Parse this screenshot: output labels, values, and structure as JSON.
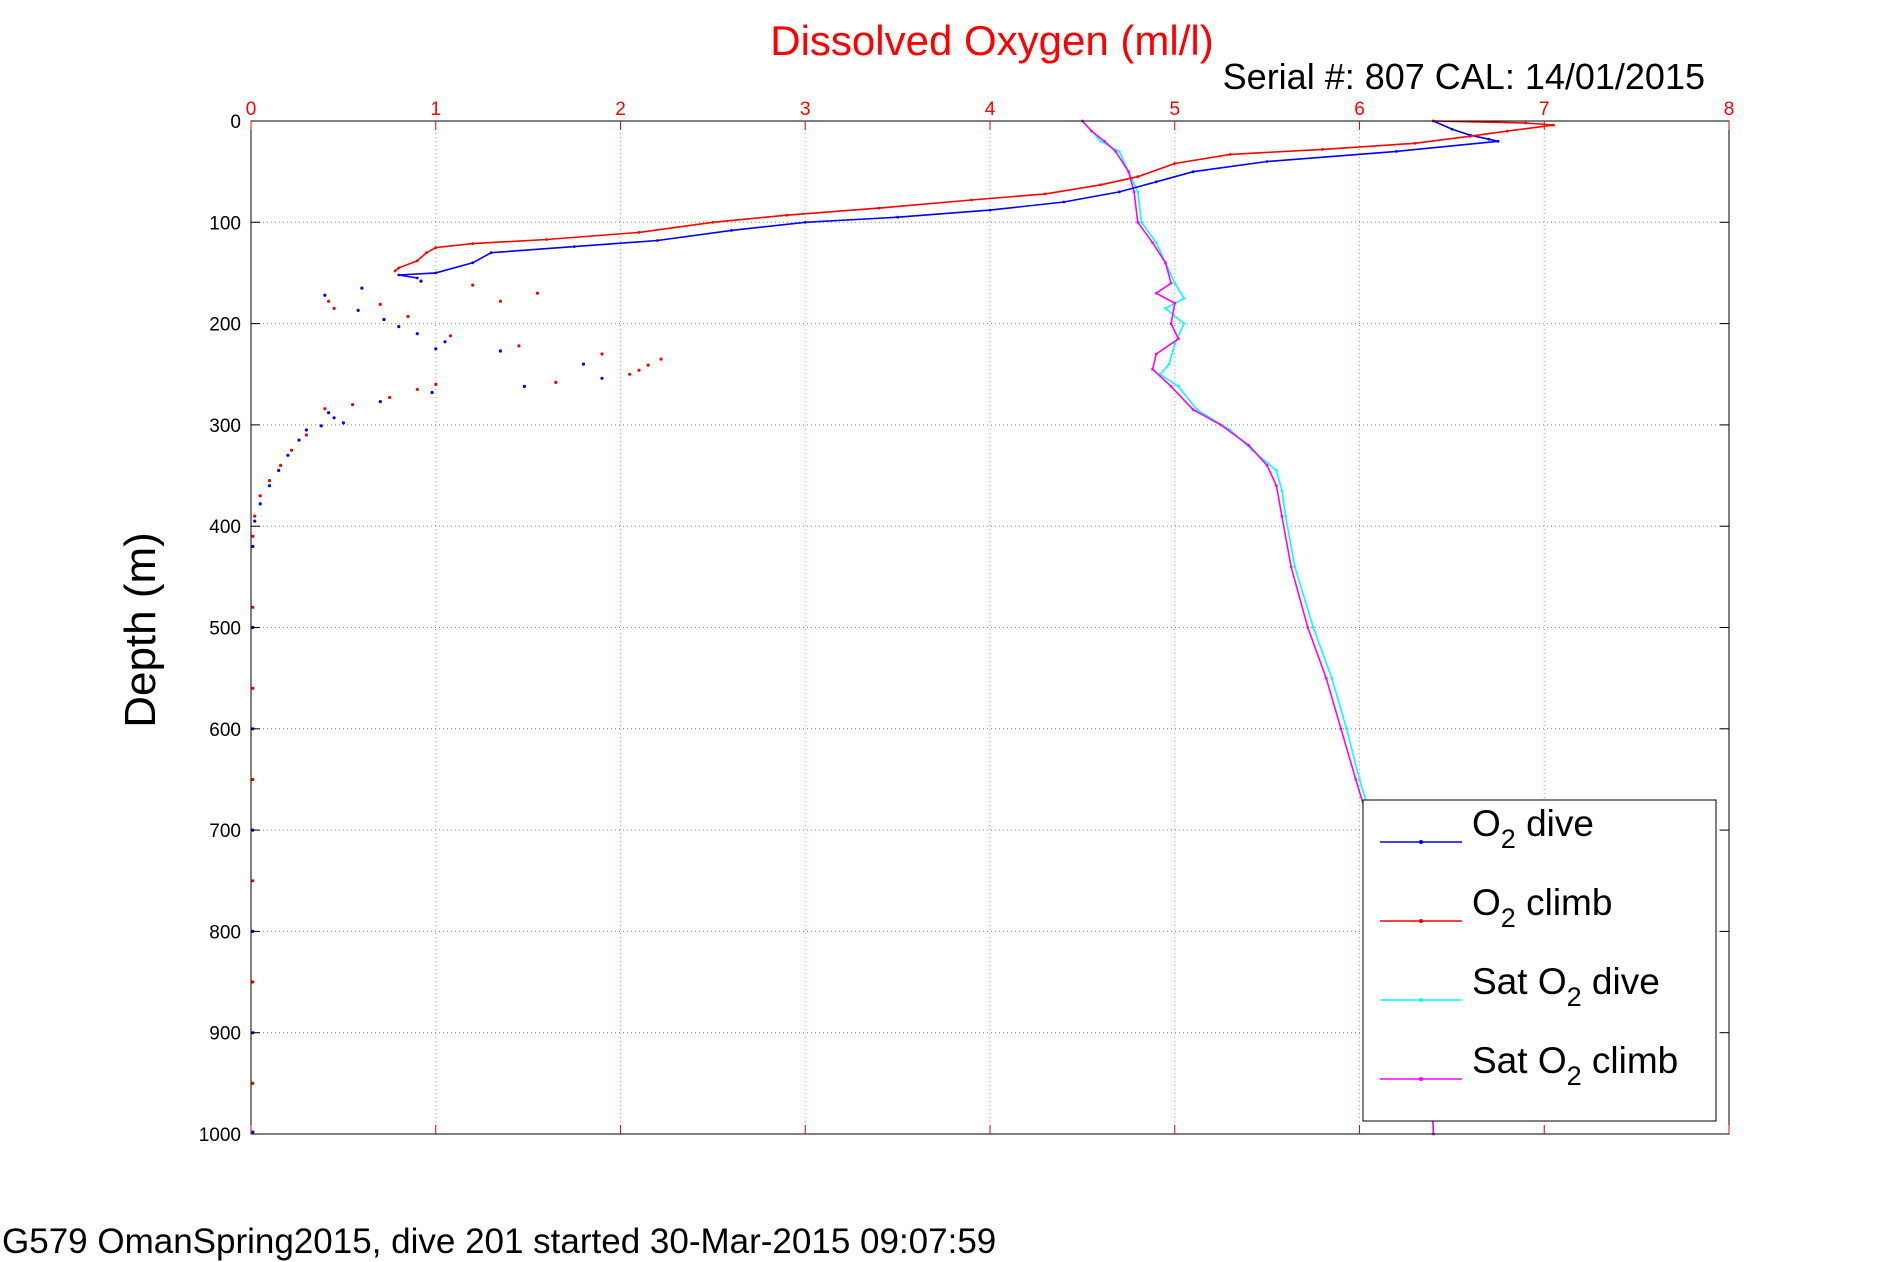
{
  "chart_data": {
    "type": "line",
    "title": "Dissolved Oxygen (ml/l)",
    "subtitle": "Serial #: 807  CAL: 14/01/2015",
    "ylabel": "Depth (m)",
    "footer": "G579 OmanSpring2015, dive 201 started 30-Mar-2015 09:07:59",
    "x_axis": {
      "position": "top",
      "range": [
        0,
        8
      ],
      "ticks": [
        "0",
        "1",
        "2",
        "3",
        "4",
        "5",
        "6",
        "7",
        "8"
      ],
      "color": "#ff0000"
    },
    "y_axis": {
      "range": [
        0,
        1000
      ],
      "reversed": true,
      "ticks": [
        "0",
        "100",
        "200",
        "300",
        "400",
        "500",
        "600",
        "700",
        "800",
        "900",
        "1000"
      ]
    },
    "grid": true,
    "legend_position": "bottom-right",
    "series": [
      {
        "name": "O2 dive",
        "legend_main": "O",
        "legend_sub": "2",
        "legend_rest": " dive",
        "color": "#0000ff",
        "points": [
          [
            6.4,
            0
          ],
          [
            6.5,
            8
          ],
          [
            6.6,
            14
          ],
          [
            6.7,
            18
          ],
          [
            6.75,
            20
          ],
          [
            6.2,
            30
          ],
          [
            5.5,
            40
          ],
          [
            5.1,
            50
          ],
          [
            4.9,
            60
          ],
          [
            4.7,
            70
          ],
          [
            4.4,
            80
          ],
          [
            4.0,
            88
          ],
          [
            3.5,
            95
          ],
          [
            3.0,
            100
          ],
          [
            2.6,
            108
          ],
          [
            2.2,
            118
          ],
          [
            1.75,
            124
          ],
          [
            1.3,
            130
          ],
          [
            1.2,
            140
          ],
          [
            1.0,
            150
          ],
          [
            0.8,
            152
          ],
          [
            0.9,
            155
          ]
        ]
      },
      {
        "name": "O2 climb",
        "legend_main": "O",
        "legend_sub": "2",
        "legend_rest": " climb",
        "color": "#ff0000",
        "points": [
          [
            6.4,
            0
          ],
          [
            6.9,
            2
          ],
          [
            7.05,
            4
          ],
          [
            6.8,
            10
          ],
          [
            6.6,
            15
          ],
          [
            6.3,
            22
          ],
          [
            5.8,
            28
          ],
          [
            5.3,
            33
          ],
          [
            5.0,
            42
          ],
          [
            4.8,
            55
          ],
          [
            4.6,
            63
          ],
          [
            4.3,
            72
          ],
          [
            3.9,
            78
          ],
          [
            3.4,
            86
          ],
          [
            2.9,
            93
          ],
          [
            2.5,
            100
          ],
          [
            2.1,
            110
          ],
          [
            1.6,
            117
          ],
          [
            1.2,
            121
          ],
          [
            1.0,
            125
          ],
          [
            0.95,
            130
          ],
          [
            0.9,
            138
          ],
          [
            0.8,
            145
          ],
          [
            0.78,
            148
          ]
        ]
      },
      {
        "name": "Sat O2 dive",
        "legend_main": "Sat O",
        "legend_sub": "2",
        "legend_rest": " dive",
        "color": "#00ffff",
        "points": [
          [
            4.5,
            0
          ],
          [
            4.55,
            10
          ],
          [
            4.6,
            20
          ],
          [
            4.7,
            30
          ],
          [
            4.75,
            50
          ],
          [
            4.8,
            70
          ],
          [
            4.82,
            100
          ],
          [
            4.9,
            120
          ],
          [
            4.95,
            140
          ],
          [
            5.0,
            160
          ],
          [
            5.05,
            175
          ],
          [
            4.95,
            185
          ],
          [
            5.05,
            200
          ],
          [
            5.0,
            220
          ],
          [
            4.97,
            240
          ],
          [
            4.92,
            250
          ],
          [
            5.02,
            262
          ],
          [
            5.12,
            285
          ],
          [
            5.3,
            305
          ],
          [
            5.42,
            325
          ],
          [
            5.55,
            345
          ],
          [
            5.58,
            365
          ],
          [
            5.6,
            390
          ],
          [
            5.65,
            440
          ],
          [
            5.75,
            500
          ],
          [
            5.85,
            550
          ],
          [
            5.93,
            600
          ],
          [
            6.0,
            650
          ],
          [
            6.05,
            680
          ],
          [
            6.1,
            700
          ],
          [
            6.2,
            750
          ],
          [
            6.3,
            820
          ],
          [
            6.38,
            900
          ],
          [
            6.4,
            1000
          ]
        ]
      },
      {
        "name": "Sat O2 climb",
        "legend_main": "Sat O",
        "legend_sub": "2",
        "legend_rest": " climb",
        "color": "#ff00ff",
        "points": [
          [
            4.5,
            0
          ],
          [
            4.55,
            10
          ],
          [
            4.62,
            20
          ],
          [
            4.68,
            30
          ],
          [
            4.75,
            50
          ],
          [
            4.78,
            70
          ],
          [
            4.8,
            100
          ],
          [
            4.88,
            120
          ],
          [
            4.95,
            140
          ],
          [
            4.98,
            160
          ],
          [
            4.9,
            170
          ],
          [
            5.0,
            180
          ],
          [
            4.98,
            200
          ],
          [
            5.02,
            215
          ],
          [
            4.9,
            230
          ],
          [
            4.88,
            245
          ],
          [
            4.98,
            262
          ],
          [
            5.1,
            285
          ],
          [
            5.25,
            300
          ],
          [
            5.4,
            320
          ],
          [
            5.5,
            340
          ],
          [
            5.55,
            360
          ],
          [
            5.58,
            390
          ],
          [
            5.63,
            440
          ],
          [
            5.72,
            500
          ],
          [
            5.82,
            550
          ],
          [
            5.9,
            600
          ],
          [
            5.98,
            650
          ],
          [
            6.03,
            680
          ],
          [
            6.1,
            700
          ],
          [
            6.2,
            750
          ],
          [
            6.3,
            820
          ],
          [
            6.38,
            900
          ],
          [
            6.4,
            1000
          ]
        ]
      }
    ],
    "scatter_dive": [
      [
        0.4,
        172
      ],
      [
        0.6,
        165
      ],
      [
        0.58,
        187
      ],
      [
        0.72,
        196
      ],
      [
        0.8,
        203
      ],
      [
        0.9,
        210
      ],
      [
        1.05,
        218
      ],
      [
        1.0,
        225
      ],
      [
        1.35,
        227
      ],
      [
        1.48,
        262
      ],
      [
        1.8,
        240
      ],
      [
        1.9,
        254
      ],
      [
        0.98,
        268
      ],
      [
        0.92,
        158
      ],
      [
        0.7,
        277
      ],
      [
        0.42,
        288
      ],
      [
        0.45,
        293
      ],
      [
        0.5,
        298
      ],
      [
        0.38,
        301
      ],
      [
        0.3,
        305
      ],
      [
        0.26,
        315
      ],
      [
        0.2,
        330
      ],
      [
        0.15,
        345
      ],
      [
        0.1,
        360
      ],
      [
        0.05,
        378
      ],
      [
        0.02,
        395
      ],
      [
        0.01,
        420
      ],
      [
        0.01,
        500
      ],
      [
        0.01,
        600
      ],
      [
        0.01,
        700
      ],
      [
        0.01,
        800
      ],
      [
        0.01,
        900
      ],
      [
        0.01,
        998
      ]
    ],
    "scatter_climb": [
      [
        0.42,
        178
      ],
      [
        0.45,
        185
      ],
      [
        0.7,
        181
      ],
      [
        0.85,
        193
      ],
      [
        1.2,
        162
      ],
      [
        1.35,
        178
      ],
      [
        1.55,
        170
      ],
      [
        1.08,
        212
      ],
      [
        1.45,
        222
      ],
      [
        1.65,
        258
      ],
      [
        1.9,
        230
      ],
      [
        2.05,
        250
      ],
      [
        2.1,
        246
      ],
      [
        2.15,
        241
      ],
      [
        2.22,
        235
      ],
      [
        1.0,
        260
      ],
      [
        0.9,
        265
      ],
      [
        0.75,
        273
      ],
      [
        0.55,
        280
      ],
      [
        0.4,
        284
      ],
      [
        0.3,
        310
      ],
      [
        0.22,
        325
      ],
      [
        0.16,
        340
      ],
      [
        0.1,
        355
      ],
      [
        0.05,
        370
      ],
      [
        0.02,
        390
      ],
      [
        0.01,
        410
      ],
      [
        0.01,
        480
      ],
      [
        0.01,
        560
      ],
      [
        0.01,
        650
      ],
      [
        0.01,
        750
      ],
      [
        0.01,
        850
      ],
      [
        0.01,
        950
      ]
    ]
  }
}
